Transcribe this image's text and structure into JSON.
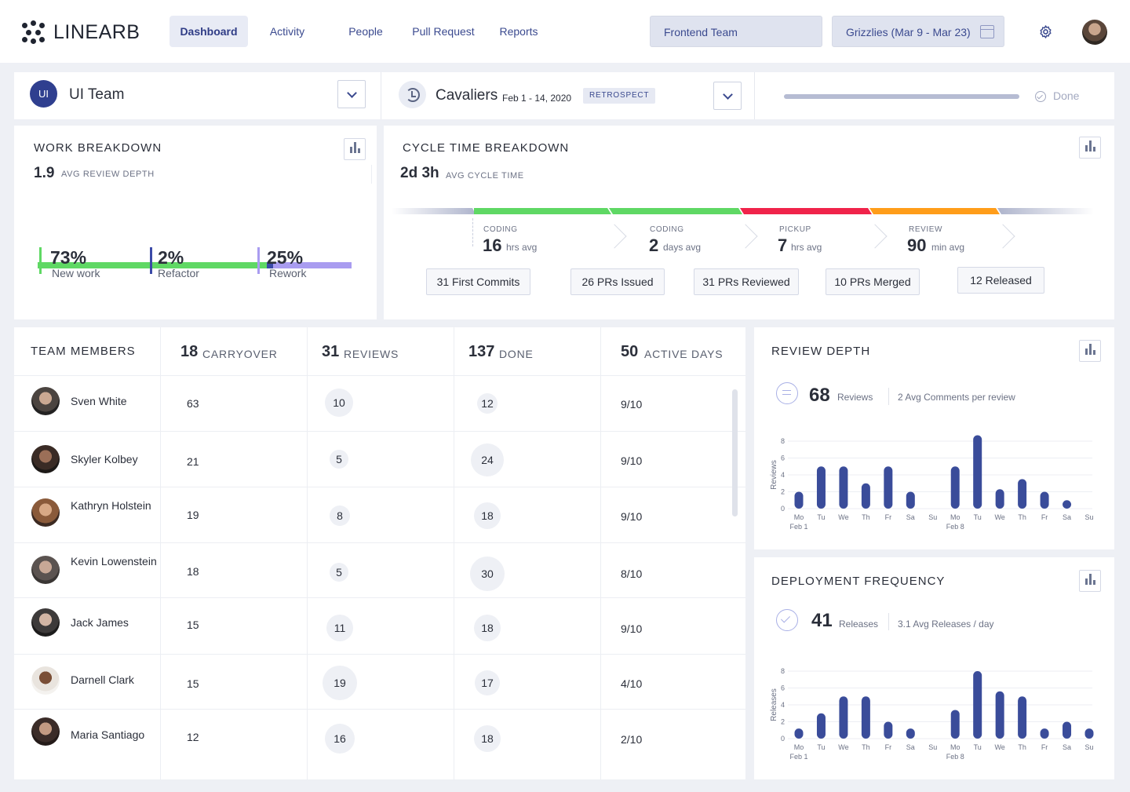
{
  "brand": {
    "name": "LINEARB"
  },
  "nav": {
    "tabs": [
      "Dashboard",
      "Activity",
      "People",
      "Pull Request",
      "Reports"
    ],
    "team_select": "Frontend Team",
    "sprint_select": "Grizzlies (Mar 9 - Mar 23)"
  },
  "teambar": {
    "badge": "UI",
    "team_name": "UI Team",
    "sprint_name": "Cavaliers",
    "sprint_dates": "Feb 1 - 14, 2020",
    "sprint_tag": "RETROSPECT",
    "progress": 1.0,
    "status": "Done"
  },
  "colors": {
    "accent": "#2f3f8f",
    "new_work": "#5fd864",
    "refactor": "#3b4aa8",
    "rework": "#a99cf0",
    "coding": "#5fd864",
    "pickup": "#f0234a",
    "review": "#ff9d1a",
    "bar": "#3a4c9a"
  },
  "work_breakdown": {
    "title": "WORK BREAKDOWN",
    "value": "1.9",
    "label": "AVG REVIEW DEPTH",
    "stats": [
      {
        "value": "73%",
        "label": "New work",
        "fraction": 0.73
      },
      {
        "value": "2%",
        "label": "Refactor",
        "fraction": 0.02
      },
      {
        "value": "25%",
        "label": "Rework",
        "fraction": 0.25
      }
    ]
  },
  "cycle_time": {
    "title": "CYCLE TIME BREAKDOWN",
    "value": "2d 3h",
    "label": "AVG CYCLE TIME",
    "stages": [
      {
        "name": "CODING",
        "value": "16",
        "unit": "hrs avg"
      },
      {
        "name": "CODING",
        "value": "2",
        "unit": "days avg"
      },
      {
        "name": "PICKUP",
        "value": "7",
        "unit": "hrs avg"
      },
      {
        "name": "REVIEW",
        "value": "90",
        "unit": "min avg"
      }
    ],
    "milestones": [
      "31 First Commits",
      "26 PRs Issued",
      "31 PRs Reviewed",
      "10 PRs Merged",
      "12 Released"
    ]
  },
  "team_table": {
    "header_title": "TEAM MEMBERS",
    "columns": [
      {
        "num": "18",
        "label": "CARRYOVER"
      },
      {
        "num": "31",
        "label": "REVIEWS"
      },
      {
        "num": "137",
        "label": "DONE"
      },
      {
        "num": "50",
        "label": "ACTIVE DAYS"
      }
    ],
    "rows": [
      {
        "name": "Sven White",
        "carryover": "63",
        "reviews": "10",
        "done": "12",
        "active": "9/10"
      },
      {
        "name": "Skyler Kolbey",
        "carryover": "21",
        "reviews": "5",
        "done": "24",
        "active": "9/10"
      },
      {
        "name": "Kathryn Holstein",
        "carryover": "19",
        "reviews": "8",
        "done": "18",
        "active": "9/10"
      },
      {
        "name": "Kevin Lowenstein",
        "carryover": "18",
        "reviews": "5",
        "done": "30",
        "active": "8/10"
      },
      {
        "name": "Jack James",
        "carryover": "15",
        "reviews": "11",
        "done": "18",
        "active": "9/10"
      },
      {
        "name": "Darnell Clark",
        "carryover": "15",
        "reviews": "19",
        "done": "17",
        "active": "4/10"
      },
      {
        "name": "Maria Santiago",
        "carryover": "12",
        "reviews": "16",
        "done": "18",
        "active": "2/10"
      }
    ]
  },
  "review_depth": {
    "title": "REVIEW DEPTH",
    "value": "68",
    "value_label": "Reviews",
    "secondary": "2 Avg Comments per review"
  },
  "deploy_freq": {
    "title": "DEPLOYMENT FREQUENCY",
    "value": "41",
    "value_label": "Releases",
    "secondary": "3.1 Avg Releases / day"
  },
  "chart_data": [
    {
      "type": "bar",
      "ylabel": "Reviews",
      "ylim": [
        0,
        8
      ],
      "yticks": [
        0,
        2,
        4,
        6,
        8
      ],
      "categories": [
        "Mo",
        "Tu",
        "We",
        "Th",
        "Fr",
        "Sa",
        "Su",
        "Mo",
        "Tu",
        "We",
        "Th",
        "Fr",
        "Sa",
        "Su"
      ],
      "date_labels": [
        "Feb 1",
        "",
        "",
        "",
        "",
        "",
        "",
        "Feb 8",
        "",
        "",
        "",
        "",
        "",
        ""
      ],
      "values": [
        2,
        5,
        5,
        3,
        5,
        2,
        0,
        5,
        8.7,
        2.3,
        3.5,
        2,
        1,
        0
      ]
    },
    {
      "type": "bar",
      "ylabel": "Releases",
      "ylim": [
        0,
        8
      ],
      "yticks": [
        0,
        2,
        4,
        6,
        8
      ],
      "categories": [
        "Mo",
        "Tu",
        "We",
        "Th",
        "Fr",
        "Sa",
        "Su",
        "Mo",
        "Tu",
        "We",
        "Th",
        "Fr",
        "Sa",
        "Su"
      ],
      "date_labels": [
        "Feb 1",
        "",
        "",
        "",
        "",
        "",
        "",
        "Feb 8",
        "",
        "",
        "",
        "",
        "",
        ""
      ],
      "values": [
        1.2,
        3,
        5,
        5,
        2,
        1.2,
        0,
        3.4,
        8,
        5.6,
        5,
        1.2,
        2,
        1.2
      ]
    }
  ]
}
